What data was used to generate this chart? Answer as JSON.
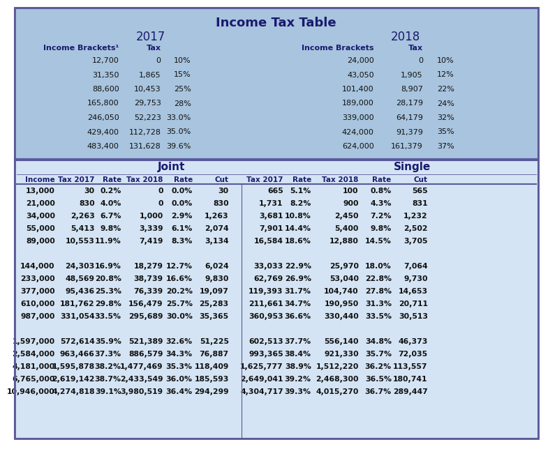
{
  "title": "Income Tax Table",
  "bg_top": "#a8c4de",
  "bg_bottom": "#d4e4f4",
  "border_col": "#5a5a9a",
  "header_col": "#1a1a6e",
  "dark_text": "#111111",
  "bracket_2017": {
    "label": "2017",
    "rows": [
      [
        "12,700",
        "0",
        "10%"
      ],
      [
        "31,350",
        "1,865",
        "15%"
      ],
      [
        "88,600",
        "10,453",
        "25%"
      ],
      [
        "165,800",
        "29,753",
        "28%"
      ],
      [
        "246,050",
        "52,223",
        "33.0%"
      ],
      [
        "429,400",
        "112,728",
        "35.0%"
      ],
      [
        "483,400",
        "131,628",
        "39.6%"
      ]
    ]
  },
  "bracket_2018": {
    "label": "2018",
    "rows": [
      [
        "24,000",
        "0",
        "10%"
      ],
      [
        "43,050",
        "1,905",
        "12%"
      ],
      [
        "101,400",
        "8,907",
        "22%"
      ],
      [
        "189,000",
        "28,179",
        "24%"
      ],
      [
        "339,000",
        "64,179",
        "32%"
      ],
      [
        "424,000",
        "91,379",
        "35%"
      ],
      [
        "624,000",
        "161,379",
        "37%"
      ]
    ]
  },
  "joint_header": "Joint",
  "single_header": "Single",
  "col_headers": [
    "Income",
    "Tax 2017",
    "Rate",
    "Tax 2018",
    "Rate",
    "Cut",
    "Tax 2017",
    "Rate",
    "Tax 2018",
    "Rate",
    "Cut"
  ],
  "rows": [
    [
      "13,000",
      "30",
      "0.2%",
      "0",
      "0.0%",
      "30",
      "665",
      "5.1%",
      "100",
      "0.8%",
      "565"
    ],
    [
      "21,000",
      "830",
      "4.0%",
      "0",
      "0.0%",
      "830",
      "1,731",
      "8.2%",
      "900",
      "4.3%",
      "831"
    ],
    [
      "34,000",
      "2,263",
      "6.7%",
      "1,000",
      "2.9%",
      "1,263",
      "3,681",
      "10.8%",
      "2,450",
      "7.2%",
      "1,232"
    ],
    [
      "55,000",
      "5,413",
      "9.8%",
      "3,339",
      "6.1%",
      "2,074",
      "7,901",
      "14.4%",
      "5,400",
      "9.8%",
      "2,502"
    ],
    [
      "89,000",
      "10,553",
      "11.9%",
      "7,419",
      "8.3%",
      "3,134",
      "16,584",
      "18.6%",
      "12,880",
      "14.5%",
      "3,705"
    ],
    [
      "",
      "",
      "",
      "",
      "",
      "",
      "",
      "",
      "",
      "",
      ""
    ],
    [
      "144,000",
      "24,303",
      "16.9%",
      "18,279",
      "12.7%",
      "6,024",
      "33,033",
      "22.9%",
      "25,970",
      "18.0%",
      "7,064"
    ],
    [
      "233,000",
      "48,569",
      "20.8%",
      "38,739",
      "16.6%",
      "9,830",
      "62,769",
      "26.9%",
      "53,040",
      "22.8%",
      "9,730"
    ],
    [
      "377,000",
      "95,436",
      "25.3%",
      "76,339",
      "20.2%",
      "19,097",
      "119,393",
      "31.7%",
      "104,740",
      "27.8%",
      "14,653"
    ],
    [
      "610,000",
      "181,762",
      "29.8%",
      "156,479",
      "25.7%",
      "25,283",
      "211,661",
      "34.7%",
      "190,950",
      "31.3%",
      "20,711"
    ],
    [
      "987,000",
      "331,054",
      "33.5%",
      "295,689",
      "30.0%",
      "35,365",
      "360,953",
      "36.6%",
      "330,440",
      "33.5%",
      "30,513"
    ],
    [
      "",
      "",
      "",
      "",
      "",
      "",
      "",
      "",
      "",
      "",
      ""
    ],
    [
      "1,597,000",
      "572,614",
      "35.9%",
      "521,389",
      "32.6%",
      "51,225",
      "602,513",
      "37.7%",
      "556,140",
      "34.8%",
      "46,373"
    ],
    [
      "2,584,000",
      "963,466",
      "37.3%",
      "886,579",
      "34.3%",
      "76,887",
      "993,365",
      "38.4%",
      "921,330",
      "35.7%",
      "72,035"
    ],
    [
      "4,181,000",
      "1,595,878",
      "38.2%",
      "1,477,469",
      "35.3%",
      "118,409",
      "1,625,777",
      "38.9%",
      "1,512,220",
      "36.2%",
      "113,557"
    ],
    [
      "6,765,000",
      "2,619,142",
      "38.7%",
      "2,433,549",
      "36.0%",
      "185,593",
      "2,649,041",
      "39.2%",
      "2,468,300",
      "36.5%",
      "180,741"
    ],
    [
      "10,946,000",
      "4,274,818",
      "39.1%",
      "3,980,519",
      "36.4%",
      "294,299",
      "4,304,717",
      "39.3%",
      "4,015,270",
      "36.7%",
      "289,447"
    ]
  ],
  "bold_rows": [
    0,
    1,
    2,
    3,
    4,
    6,
    7,
    8,
    9,
    10,
    12,
    13,
    14,
    15,
    16
  ]
}
